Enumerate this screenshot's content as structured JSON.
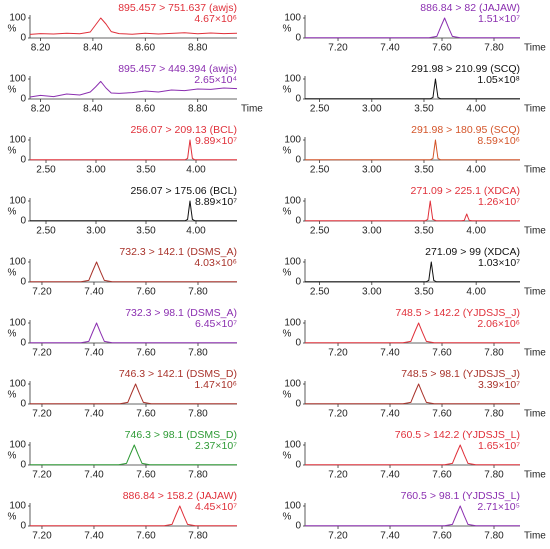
{
  "chart_data": [
    {
      "type": "line",
      "title": "895.457 > 751.637 (awjs)",
      "annotation": "4.67×10⁶",
      "ylabel": "%",
      "color": "#e0303a",
      "xlim": [
        8.16,
        8.95
      ],
      "xticks": [
        {
          "value": 8.2,
          "label": "8.20"
        },
        {
          "value": 8.4,
          "label": "8.40"
        },
        {
          "value": 8.6,
          "label": "8.60"
        },
        {
          "value": 8.8,
          "label": "8.80"
        }
      ],
      "ylim": [
        0,
        100
      ],
      "yticks": [
        0,
        100
      ],
      "x": [
        8.16,
        8.2,
        8.25,
        8.3,
        8.35,
        8.39,
        8.41,
        8.43,
        8.45,
        8.47,
        8.5,
        8.55,
        8.6,
        8.65,
        8.7,
        8.75,
        8.8,
        8.85,
        8.9,
        8.95
      ],
      "values": [
        18,
        22,
        20,
        24,
        21,
        30,
        65,
        100,
        70,
        32,
        22,
        19,
        24,
        20,
        23,
        26,
        21,
        25,
        22,
        24
      ]
    },
    {
      "type": "line",
      "title": "895.457 > 449.394 (awjs)",
      "annotation": "2.65×10⁴",
      "ylabel": "%",
      "xlabel": "Time",
      "color": "#8b2fb0",
      "xlim": [
        8.16,
        8.95
      ],
      "xticks": [
        {
          "value": 8.2,
          "label": "8.20"
        },
        {
          "value": 8.4,
          "label": "8.40"
        },
        {
          "value": 8.6,
          "label": "8.60"
        },
        {
          "value": 8.8,
          "label": "8.80"
        }
      ],
      "ylim": [
        0,
        100
      ],
      "yticks": [
        0,
        100
      ],
      "x": [
        8.16,
        8.2,
        8.25,
        8.3,
        8.35,
        8.39,
        8.41,
        8.43,
        8.45,
        8.47,
        8.5,
        8.55,
        8.6,
        8.65,
        8.7,
        8.75,
        8.8,
        8.85,
        8.9,
        8.95
      ],
      "values": [
        10,
        18,
        12,
        25,
        20,
        35,
        60,
        88,
        55,
        30,
        28,
        32,
        40,
        35,
        45,
        42,
        50,
        48,
        55,
        52
      ]
    },
    {
      "type": "line",
      "title": "256.07 > 209.13 (BCL)",
      "annotation": "9.89×10⁷",
      "ylabel": "%",
      "color": "#e0303a",
      "xlim": [
        2.34,
        4.41
      ],
      "xticks": [
        {
          "value": 2.5,
          "label": "2.50"
        },
        {
          "value": 3,
          "label": "3.00"
        },
        {
          "value": 3.5,
          "label": "3.50"
        },
        {
          "value": 4,
          "label": "4.00"
        }
      ],
      "ylim": [
        0,
        100
      ],
      "yticks": [
        0,
        100
      ],
      "x": [
        2.34,
        3.89,
        3.916,
        3.928,
        3.94,
        3.952,
        3.964,
        3.99,
        4.41
      ],
      "values": [
        1,
        1,
        8,
        55,
        100,
        52,
        8,
        1,
        1
      ]
    },
    {
      "type": "line",
      "title": "256.07 > 175.06 (BCL)",
      "annotation": "8.89×10⁷",
      "ylabel": "%",
      "color": "#111111",
      "xlim": [
        2.34,
        4.41
      ],
      "xticks": [
        {
          "value": 2.5,
          "label": "2.50"
        },
        {
          "value": 3,
          "label": "3.00"
        },
        {
          "value": 3.5,
          "label": "3.50"
        },
        {
          "value": 4,
          "label": "4.00"
        }
      ],
      "ylim": [
        0,
        100
      ],
      "yticks": [
        0,
        100
      ],
      "x": [
        2.34,
        3.89,
        3.916,
        3.928,
        3.94,
        3.952,
        3.964,
        3.99,
        4.41
      ],
      "values": [
        1,
        1,
        8,
        55,
        100,
        52,
        8,
        1,
        1
      ]
    },
    {
      "type": "line",
      "title": "732.3 > 142.1 (DSMS_A)",
      "annotation": "4.03×10⁶",
      "ylabel": "%",
      "color": "#a8322a",
      "xlim": [
        7.154,
        7.95
      ],
      "xticks": [
        {
          "value": 7.2,
          "label": "7.20"
        },
        {
          "value": 7.4,
          "label": "7.40"
        },
        {
          "value": 7.6,
          "label": "7.60"
        },
        {
          "value": 7.8,
          "label": "7.80"
        }
      ],
      "ylim": [
        0,
        100
      ],
      "yticks": [
        0,
        100
      ],
      "x": [
        7.154,
        7.35,
        7.38,
        7.395,
        7.41,
        7.425,
        7.44,
        7.47,
        7.95
      ],
      "values": [
        1,
        1,
        8,
        55,
        100,
        52,
        8,
        1,
        1
      ]
    },
    {
      "type": "line",
      "title": "732.3 > 98.1 (DSMS_A)",
      "annotation": "6.45×10⁷",
      "ylabel": "%",
      "color": "#8b2fb0",
      "xlim": [
        7.154,
        7.95
      ],
      "xticks": [
        {
          "value": 7.2,
          "label": "7.20"
        },
        {
          "value": 7.4,
          "label": "7.40"
        },
        {
          "value": 7.6,
          "label": "7.60"
        },
        {
          "value": 7.8,
          "label": "7.80"
        }
      ],
      "ylim": [
        0,
        100
      ],
      "yticks": [
        0,
        100
      ],
      "x": [
        7.154,
        7.35,
        7.38,
        7.395,
        7.41,
        7.425,
        7.44,
        7.47,
        7.95
      ],
      "values": [
        1,
        1,
        8,
        55,
        100,
        52,
        8,
        1,
        1
      ]
    },
    {
      "type": "line",
      "title": "746.3 > 142.1 (DSMS_D)",
      "annotation": "1.47×10⁶",
      "ylabel": "%",
      "color": "#a8322a",
      "xlim": [
        7.154,
        7.95
      ],
      "xticks": [
        {
          "value": 7.2,
          "label": "7.20"
        },
        {
          "value": 7.4,
          "label": "7.40"
        },
        {
          "value": 7.6,
          "label": "7.60"
        },
        {
          "value": 7.8,
          "label": "7.80"
        }
      ],
      "ylim": [
        0,
        100
      ],
      "yticks": [
        0,
        100
      ],
      "x": [
        7.154,
        7.5,
        7.53,
        7.545,
        7.56,
        7.575,
        7.59,
        7.62,
        7.95
      ],
      "values": [
        1,
        1,
        8,
        55,
        100,
        52,
        8,
        1,
        1
      ]
    },
    {
      "type": "line",
      "title": "746.3 > 98.1 (DSMS_D)",
      "annotation": "2.37×10⁷",
      "ylabel": "%",
      "color": "#2e9a35",
      "xlim": [
        7.154,
        7.95
      ],
      "xticks": [
        {
          "value": 7.2,
          "label": "7.20"
        },
        {
          "value": 7.4,
          "label": "7.40"
        },
        {
          "value": 7.6,
          "label": "7.60"
        },
        {
          "value": 7.8,
          "label": "7.80"
        }
      ],
      "ylim": [
        0,
        100
      ],
      "yticks": [
        0,
        100
      ],
      "x": [
        7.154,
        7.495,
        7.525,
        7.54,
        7.555,
        7.57,
        7.585,
        7.615,
        7.95
      ],
      "values": [
        1,
        1,
        8,
        55,
        100,
        52,
        8,
        1,
        1
      ]
    },
    {
      "type": "line",
      "title": "886.84 > 158.2 (JAJAW)",
      "annotation": "4.45×10⁷",
      "ylabel": "%",
      "color": "#e0303a",
      "xlim": [
        7.154,
        7.95
      ],
      "xticks": [
        {
          "value": 7.2,
          "label": "7.20"
        },
        {
          "value": 7.4,
          "label": "7.40"
        },
        {
          "value": 7.6,
          "label": "7.60"
        },
        {
          "value": 7.8,
          "label": "7.80"
        }
      ],
      "ylim": [
        0,
        100
      ],
      "yticks": [
        0,
        100
      ],
      "x": [
        7.154,
        7.67,
        7.7,
        7.715,
        7.73,
        7.745,
        7.76,
        7.79,
        7.95
      ],
      "values": [
        1,
        1,
        8,
        55,
        100,
        52,
        8,
        1,
        1
      ]
    },
    {
      "type": "line",
      "title": "886.84 > 82 (JAJAW)",
      "annotation": "1.51×10⁷",
      "ylabel": "%",
      "xlabel": "Time",
      "color": "#8b2fb0",
      "xlim": [
        7.073,
        7.9
      ],
      "xticks": [
        {
          "value": 7.2,
          "label": "7.20"
        },
        {
          "value": 7.4,
          "label": "7.40"
        },
        {
          "value": 7.6,
          "label": "7.60"
        },
        {
          "value": 7.8,
          "label": "7.80"
        }
      ],
      "ylim": [
        0,
        100
      ],
      "yticks": [
        0,
        100
      ],
      "x": [
        7.073,
        7.55,
        7.58,
        7.595,
        7.61,
        7.625,
        7.64,
        7.67,
        7.9
      ],
      "values": [
        1,
        1,
        8,
        55,
        100,
        52,
        8,
        1,
        1
      ]
    },
    {
      "type": "line",
      "title": "291.98 > 210.99 (SCQ)",
      "annotation": "1.05×10⁸",
      "ylabel": "%",
      "xlabel": "Time",
      "color": "#111111",
      "xlim": [
        2.36,
        4.42
      ],
      "xticks": [
        {
          "value": 2.5,
          "label": "2.50"
        },
        {
          "value": 3,
          "label": "3.00"
        },
        {
          "value": 3.5,
          "label": "3.50"
        },
        {
          "value": 4,
          "label": "4.00"
        }
      ],
      "ylim": [
        0,
        100
      ],
      "yticks": [
        0,
        100
      ],
      "x": [
        2.36,
        3.56,
        3.586,
        3.598,
        3.61,
        3.622,
        3.634,
        3.66,
        4.42
      ],
      "values": [
        1,
        1,
        8,
        55,
        100,
        52,
        8,
        1,
        1
      ]
    },
    {
      "type": "line",
      "title": "291.98 > 180.95 (SCQ)",
      "annotation": "8.59×10⁶",
      "ylabel": "%",
      "xlabel": "Time",
      "color": "#d4552a",
      "xlim": [
        2.36,
        4.42
      ],
      "xticks": [
        {
          "value": 2.5,
          "label": "2.50"
        },
        {
          "value": 3,
          "label": "3.00"
        },
        {
          "value": 3.5,
          "label": "3.50"
        },
        {
          "value": 4,
          "label": "4.00"
        }
      ],
      "ylim": [
        0,
        100
      ],
      "yticks": [
        0,
        100
      ],
      "x": [
        2.36,
        3.56,
        3.586,
        3.598,
        3.61,
        3.622,
        3.634,
        3.66,
        4.42
      ],
      "values": [
        1,
        1,
        8,
        55,
        100,
        52,
        8,
        1,
        1
      ]
    },
    {
      "type": "line",
      "title": "271.09 > 225.1 (XDCA)",
      "annotation": "1.26×10⁷",
      "ylabel": "%",
      "xlabel": "Time",
      "color": "#e0303a",
      "xlim": [
        2.36,
        4.42
      ],
      "xticks": [
        {
          "value": 2.5,
          "label": "2.50"
        },
        {
          "value": 3,
          "label": "3.00"
        },
        {
          "value": 3.5,
          "label": "3.50"
        },
        {
          "value": 4,
          "label": "4.00"
        }
      ],
      "ylim": [
        0,
        100
      ],
      "yticks": [
        0,
        100
      ],
      "x": [
        2.36,
        3.51,
        3.536,
        3.548,
        3.56,
        3.572,
        3.584,
        3.62,
        3.86,
        3.886,
        3.898,
        3.91,
        3.922,
        3.934,
        3.96,
        4.42
      ],
      "values": [
        1,
        1,
        8,
        55,
        100,
        52,
        8,
        1,
        1,
        3,
        20,
        35,
        18,
        3,
        1,
        1
      ]
    },
    {
      "type": "line",
      "title": "271.09 > 99 (XDCA)",
      "annotation": "1.03×10⁷",
      "ylabel": "%",
      "xlabel": "Time",
      "color": "#111111",
      "xlim": [
        2.36,
        4.42
      ],
      "xticks": [
        {
          "value": 2.5,
          "label": "2.50"
        },
        {
          "value": 3,
          "label": "3.00"
        },
        {
          "value": 3.5,
          "label": "3.50"
        },
        {
          "value": 4,
          "label": "4.00"
        }
      ],
      "ylim": [
        0,
        100
      ],
      "yticks": [
        0,
        100
      ],
      "x": [
        2.36,
        3.52,
        3.546,
        3.558,
        3.57,
        3.582,
        3.594,
        3.62,
        4.42
      ],
      "values": [
        1,
        1,
        8,
        55,
        100,
        52,
        8,
        1,
        1
      ]
    },
    {
      "type": "line",
      "title": "748.5 > 142.2 (YJDSJS_J)",
      "annotation": "2.06×10⁶",
      "ylabel": "%",
      "xlabel": "Time",
      "color": "#e0303a",
      "xlim": [
        7.073,
        7.9
      ],
      "xticks": [
        {
          "value": 7.2,
          "label": "7.20"
        },
        {
          "value": 7.4,
          "label": "7.40"
        },
        {
          "value": 7.6,
          "label": "7.60"
        },
        {
          "value": 7.8,
          "label": "7.80"
        }
      ],
      "ylim": [
        0,
        100
      ],
      "yticks": [
        0,
        100
      ],
      "x": [
        7.073,
        7.45,
        7.48,
        7.495,
        7.51,
        7.525,
        7.54,
        7.57,
        7.9
      ],
      "values": [
        1,
        1,
        8,
        55,
        100,
        52,
        8,
        1,
        1
      ]
    },
    {
      "type": "line",
      "title": "748.5 > 98.1 (YJDSJS_J)",
      "annotation": "3.39×10⁷",
      "ylabel": "%",
      "xlabel": "Time",
      "color": "#a8322a",
      "xlim": [
        7.073,
        7.9
      ],
      "xticks": [
        {
          "value": 7.2,
          "label": "7.20"
        },
        {
          "value": 7.4,
          "label": "7.40"
        },
        {
          "value": 7.6,
          "label": "7.60"
        },
        {
          "value": 7.8,
          "label": "7.80"
        }
      ],
      "ylim": [
        0,
        100
      ],
      "yticks": [
        0,
        100
      ],
      "x": [
        7.073,
        7.45,
        7.48,
        7.495,
        7.51,
        7.525,
        7.54,
        7.57,
        7.9
      ],
      "values": [
        1,
        1,
        8,
        55,
        100,
        52,
        8,
        1,
        1
      ]
    },
    {
      "type": "line",
      "title": "760.5 > 142.2 (YJDSJS_L)",
      "annotation": "1.65×10⁷",
      "ylabel": "%",
      "xlabel": "Time",
      "color": "#e0303a",
      "xlim": [
        7.073,
        7.9
      ],
      "xticks": [
        {
          "value": 7.2,
          "label": "7.20"
        },
        {
          "value": 7.4,
          "label": "7.40"
        },
        {
          "value": 7.6,
          "label": "7.60"
        },
        {
          "value": 7.8,
          "label": "7.80"
        }
      ],
      "ylim": [
        0,
        100
      ],
      "yticks": [
        0,
        100
      ],
      "x": [
        7.073,
        7.61,
        7.64,
        7.655,
        7.67,
        7.685,
        7.7,
        7.73,
        7.9
      ],
      "values": [
        1,
        1,
        8,
        55,
        100,
        52,
        8,
        1,
        1
      ]
    },
    {
      "type": "line",
      "title": "760.5 > 98.1 (YJDSJS_L)",
      "annotation": "2.71×10⁵",
      "ylabel": "%",
      "xlabel": "Time",
      "color": "#8b2fb0",
      "xlim": [
        7.073,
        7.9
      ],
      "xticks": [
        {
          "value": 7.2,
          "label": "7.20"
        },
        {
          "value": 7.4,
          "label": "7.40"
        },
        {
          "value": 7.6,
          "label": "7.60"
        },
        {
          "value": 7.8,
          "label": "7.80"
        }
      ],
      "ylim": [
        0,
        100
      ],
      "yticks": [
        0,
        100
      ],
      "x": [
        7.073,
        7.61,
        7.64,
        7.655,
        7.67,
        7.685,
        7.7,
        7.73,
        7.9
      ],
      "values": [
        1,
        1,
        8,
        55,
        100,
        52,
        8,
        1,
        1
      ]
    }
  ]
}
